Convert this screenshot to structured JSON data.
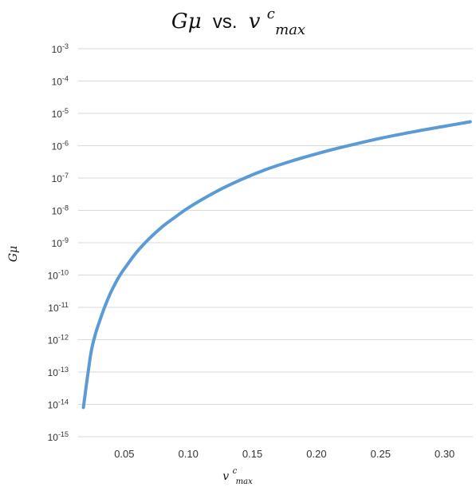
{
  "chart_data": {
    "type": "line",
    "title": "Gμ vs. v^c_max",
    "title_parts": {
      "lhs": "Gμ",
      "vs": "vs.",
      "rhs_base": "v",
      "rhs_sup": "c",
      "rhs_sub": "max"
    },
    "xlabel": "v^c_max",
    "xlabel_parts": {
      "base": "v",
      "sup": "c",
      "sub": "max"
    },
    "ylabel": "Gμ",
    "yscale": "log",
    "xlim": [
      0.014,
      0.322
    ],
    "ylim": [
      1e-15,
      0.001
    ],
    "xticks": [
      {
        "value": 0.05,
        "label": "0.05"
      },
      {
        "value": 0.1,
        "label": "0.10"
      },
      {
        "value": 0.15,
        "label": "0.15"
      },
      {
        "value": 0.2,
        "label": "0.20"
      },
      {
        "value": 0.25,
        "label": "0.25"
      },
      {
        "value": 0.3,
        "label": "0.30"
      }
    ],
    "yticks": [
      {
        "exp": -3,
        "base": "10",
        "sup": "-3"
      },
      {
        "exp": -4,
        "base": "10",
        "sup": "-4"
      },
      {
        "exp": -5,
        "base": "10",
        "sup": "-5"
      },
      {
        "exp": -6,
        "base": "10",
        "sup": "-6"
      },
      {
        "exp": -7,
        "base": "10",
        "sup": "-7"
      },
      {
        "exp": -8,
        "base": "10",
        "sup": "-8"
      },
      {
        "exp": -9,
        "base": "10",
        "sup": "-9"
      },
      {
        "exp": -10,
        "base": "10",
        "sup": "-10"
      },
      {
        "exp": -11,
        "base": "10",
        "sup": "-11"
      },
      {
        "exp": -12,
        "base": "10",
        "sup": "-12"
      },
      {
        "exp": -13,
        "base": "10",
        "sup": "-13"
      },
      {
        "exp": -14,
        "base": "10",
        "sup": "-14"
      },
      {
        "exp": -15,
        "base": "10",
        "sup": "-15"
      }
    ],
    "grid": true,
    "legend": "none",
    "series": [
      {
        "color": "#5b9bd5",
        "x": [
          0.0181,
          0.0201,
          0.0222,
          0.0245,
          0.0277,
          0.031,
          0.035,
          0.04,
          0.046,
          0.052,
          0.06,
          0.07,
          0.08,
          0.09,
          0.1,
          0.12,
          0.14,
          0.16,
          0.18,
          0.2,
          0.22,
          0.25,
          0.28,
          0.3,
          0.32
        ],
        "y": [
          8e-15,
          3.2e-14,
          1.3e-13,
          5e-13,
          1.6e-12,
          4e-12,
          1.1e-11,
          3.2e-11,
          9e-11,
          2e-10,
          5.3e-10,
          1.4e-09,
          3.2e-09,
          6.3e-09,
          1.2e-08,
          3.5e-08,
          8.5e-08,
          1.8e-07,
          3.3e-07,
          5.6e-07,
          9e-07,
          1.7e-06,
          2.9e-06,
          4e-06,
          5.5e-06
        ]
      }
    ]
  }
}
